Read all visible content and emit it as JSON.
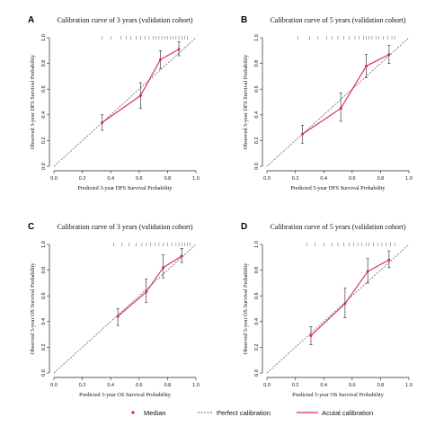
{
  "colors": {
    "calibration": "#d6284f",
    "median": "#d6284f",
    "perfect": "#333333",
    "axis": "#222222"
  },
  "legend": {
    "median_label": "Median",
    "perfect_label": "Perfect calibration",
    "actual_label": "Acutal calibration"
  },
  "chart_data": [
    {
      "type": "line",
      "panel": "A",
      "title": "Calibration curve of 3 years (validation cohort)",
      "xlabel": "Predicted 3-year DFS Survival Probability",
      "ylabel": "Observed 3-year DFS Survival Probability",
      "xlim": [
        0,
        1
      ],
      "ylim": [
        0,
        1
      ],
      "xticks": [
        "0.0",
        "0.2",
        "0.4",
        "0.6",
        "0.8",
        "1.0"
      ],
      "yticks": [
        "0.0",
        "0.2",
        "0.4",
        "0.6",
        "0.8",
        "1.0"
      ],
      "series": [
        {
          "x": [
            0.34,
            0.61,
            0.75,
            0.88
          ],
          "y": [
            0.34,
            0.55,
            0.83,
            0.91
          ],
          "lower": [
            0.28,
            0.45,
            0.76,
            0.86
          ],
          "upper": [
            0.4,
            0.65,
            0.9,
            0.97
          ]
        }
      ],
      "rug": [
        0.34,
        0.4,
        0.47,
        0.51,
        0.54,
        0.58,
        0.61,
        0.64,
        0.67,
        0.7,
        0.72,
        0.74,
        0.76,
        0.78,
        0.8,
        0.82,
        0.84,
        0.86,
        0.88,
        0.9,
        0.92,
        0.94
      ]
    },
    {
      "type": "line",
      "panel": "B",
      "title": "Calibration curve of 5 years (validation cohort)",
      "xlabel": "Predicted 5-year DFS Survival Probability",
      "ylabel": "Observed 5-year DFS Survival Probability",
      "xlim": [
        0,
        1
      ],
      "ylim": [
        0,
        1
      ],
      "xticks": [
        "0.0",
        "0.2",
        "0.4",
        "0.6",
        "0.8",
        "1.0"
      ],
      "yticks": [
        "0.0",
        "0.2",
        "0.4",
        "0.6",
        "0.8",
        "1.0"
      ],
      "series": [
        {
          "x": [
            0.25,
            0.52,
            0.7,
            0.86
          ],
          "y": [
            0.25,
            0.45,
            0.78,
            0.87
          ],
          "lower": [
            0.18,
            0.35,
            0.69,
            0.8
          ],
          "upper": [
            0.32,
            0.57,
            0.87,
            0.94
          ]
        }
      ],
      "rug": [
        0.22,
        0.3,
        0.36,
        0.42,
        0.46,
        0.5,
        0.54,
        0.58,
        0.62,
        0.65,
        0.68,
        0.7,
        0.72,
        0.74,
        0.77,
        0.79,
        0.82,
        0.85,
        0.88,
        0.9
      ]
    },
    {
      "type": "line",
      "panel": "C",
      "title": "Calibration curve of 3 years (validation cohort)",
      "xlabel": "Predicted 3-year OS Survival Probability",
      "ylabel": "Observed 3-year OS Survival Probability",
      "xlim": [
        0,
        1
      ],
      "ylim": [
        0,
        1
      ],
      "xticks": [
        "0.0",
        "0.2",
        "0.4",
        "0.6",
        "0.8",
        "1.0"
      ],
      "yticks": [
        "0.0",
        "0.2",
        "0.4",
        "0.6",
        "0.8",
        "1.0"
      ],
      "series": [
        {
          "x": [
            0.45,
            0.65,
            0.77,
            0.9
          ],
          "y": [
            0.44,
            0.63,
            0.82,
            0.91
          ],
          "lower": [
            0.37,
            0.55,
            0.74,
            0.86
          ],
          "upper": [
            0.5,
            0.73,
            0.92,
            0.97
          ]
        }
      ],
      "rug": [
        0.42,
        0.48,
        0.53,
        0.58,
        0.62,
        0.65,
        0.68,
        0.71,
        0.74,
        0.77,
        0.8,
        0.83,
        0.86,
        0.88,
        0.9,
        0.92,
        0.94,
        0.96
      ]
    },
    {
      "type": "line",
      "panel": "D",
      "title": "Calibration curve of 5 years (validation cohort)",
      "xlabel": "Predicted 5-year OS Survival Probability",
      "ylabel": "Observed 5-year OS Survival Probability",
      "xlim": [
        0,
        1
      ],
      "ylim": [
        0,
        1
      ],
      "xticks": [
        "0.0",
        "0.2",
        "0.4",
        "0.6",
        "0.8",
        "1.0"
      ],
      "yticks": [
        "0.0",
        "0.2",
        "0.4",
        "0.6",
        "0.8",
        "1.0"
      ],
      "series": [
        {
          "x": [
            0.31,
            0.55,
            0.71,
            0.86
          ],
          "y": [
            0.29,
            0.54,
            0.79,
            0.88
          ],
          "lower": [
            0.22,
            0.43,
            0.7,
            0.82
          ],
          "upper": [
            0.36,
            0.66,
            0.89,
            0.95
          ]
        }
      ],
      "rug": [
        0.28,
        0.34,
        0.4,
        0.46,
        0.5,
        0.54,
        0.58,
        0.61,
        0.64,
        0.67,
        0.7,
        0.72,
        0.75,
        0.78,
        0.81,
        0.84,
        0.87,
        0.9
      ]
    }
  ]
}
